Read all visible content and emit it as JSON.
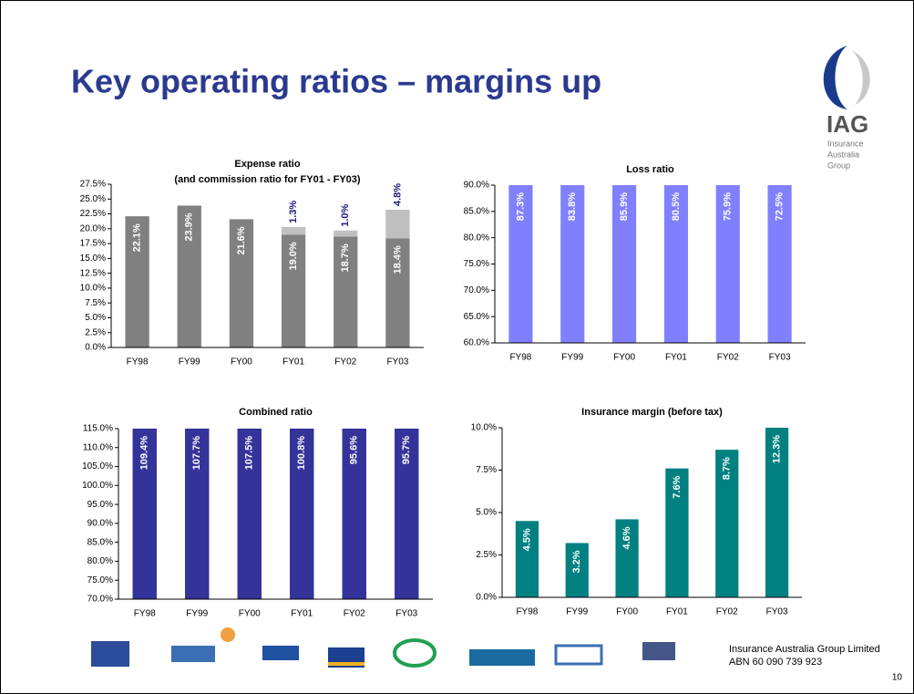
{
  "title": "Key operating ratios – margins up",
  "logo": {
    "name": "IAG",
    "lines": [
      "Insurance",
      "Australia",
      "Group"
    ]
  },
  "footer": {
    "company": "Insurance Australia Group Limited",
    "abn": "ABN 60 090 739 923",
    "page": "10"
  },
  "chart_data": [
    {
      "type": "bar",
      "stacked": true,
      "title": "Expense ratio",
      "subtitle": "(and commission ratio for FY01 - FY03)",
      "categories": [
        "FY98",
        "FY99",
        "FY00",
        "FY01",
        "FY02",
        "FY03"
      ],
      "series": [
        {
          "color": "#808080",
          "values": [
            22.1,
            23.9,
            21.6,
            19.0,
            18.7,
            18.4
          ],
          "value_labels": [
            "22.1%",
            "23.9%",
            "21.6%",
            "19.0%",
            "18.7%",
            "18.4%"
          ]
        },
        {
          "color": "#c0c0c0",
          "values": [
            null,
            null,
            null,
            1.3,
            1.0,
            4.8
          ],
          "value_labels": [
            null,
            null,
            null,
            "1.3%",
            "1.0%",
            "4.8%"
          ]
        }
      ],
      "ylim": [
        0,
        27.5
      ],
      "yticks": [
        {
          "value": 0,
          "label": "0.0%"
        },
        {
          "value": 2.5,
          "label": "2.5%"
        },
        {
          "value": 5,
          "label": "5.0%"
        },
        {
          "value": 7.5,
          "label": "7.5%"
        },
        {
          "value": 10,
          "label": "10.0%"
        },
        {
          "value": 12.5,
          "label": "12.5%"
        },
        {
          "value": 15,
          "label": "15.0%"
        },
        {
          "value": 17.5,
          "label": "17.5%"
        },
        {
          "value": 20,
          "label": "20.0%"
        },
        {
          "value": 22.5,
          "label": "22.5%"
        },
        {
          "value": 25,
          "label": "25.0%"
        },
        {
          "value": 27.5,
          "label": "27.5%"
        }
      ],
      "grid": false
    },
    {
      "type": "bar",
      "title": "Loss ratio",
      "categories": [
        "FY98",
        "FY99",
        "FY00",
        "FY01",
        "FY02",
        "FY03"
      ],
      "series": [
        {
          "color": "#8080ff",
          "values": [
            87.3,
            83.8,
            85.9,
            80.5,
            75.9,
            72.5
          ],
          "value_labels": [
            "87.3%",
            "83.8%",
            "85.9%",
            "80.5%",
            "75.9%",
            "72.5%"
          ]
        }
      ],
      "ylim": [
        60,
        90
      ],
      "yticks": [
        {
          "value": 60,
          "label": "60.0%"
        },
        {
          "value": 65,
          "label": "65.0%"
        },
        {
          "value": 70,
          "label": "70.0%"
        },
        {
          "value": 75,
          "label": "75.0%"
        },
        {
          "value": 80,
          "label": "80.0%"
        },
        {
          "value": 85,
          "label": "85.0%"
        },
        {
          "value": 90,
          "label": "90.0%"
        }
      ],
      "grid": false
    },
    {
      "type": "bar",
      "title": "Combined ratio",
      "categories": [
        "FY98",
        "FY99",
        "FY00",
        "FY01",
        "FY02",
        "FY03"
      ],
      "series": [
        {
          "color": "#333399",
          "values": [
            109.4,
            107.7,
            107.5,
            100.8,
            95.6,
            95.7
          ],
          "value_labels": [
            "109.4%",
            "107.7%",
            "107.5%",
            "100.8%",
            "95.6%",
            "95.7%"
          ]
        }
      ],
      "ylim": [
        70,
        115
      ],
      "yticks": [
        {
          "value": 70,
          "label": "70.0%"
        },
        {
          "value": 75,
          "label": "75.0%"
        },
        {
          "value": 80,
          "label": "80.0%"
        },
        {
          "value": 85,
          "label": "85.0%"
        },
        {
          "value": 90,
          "label": "90.0%"
        },
        {
          "value": 95,
          "label": "95.0%"
        },
        {
          "value": 100,
          "label": "100.0%"
        },
        {
          "value": 105,
          "label": "105.0%"
        },
        {
          "value": 110,
          "label": "110.0%"
        },
        {
          "value": 115,
          "label": "115.0%"
        }
      ],
      "grid": false
    },
    {
      "type": "bar",
      "title": "Insurance margin (before tax)",
      "categories": [
        "FY98",
        "FY99",
        "FY00",
        "FY01",
        "FY02",
        "FY03"
      ],
      "series": [
        {
          "color": "#008080",
          "values": [
            4.5,
            3.2,
            4.6,
            7.6,
            8.7,
            12.3
          ],
          "value_labels": [
            "4.5%",
            "3.2%",
            "4.6%",
            "7.6%",
            "8.7%",
            "12.3%"
          ]
        }
      ],
      "ylim": [
        0,
        10
      ],
      "yticks": [
        {
          "value": 0,
          "label": "0.0%"
        },
        {
          "value": 2.5,
          "label": "2.5%"
        },
        {
          "value": 5,
          "label": "5.0%"
        },
        {
          "value": 7.5,
          "label": "7.5%"
        },
        {
          "value": 10,
          "label": "10.0%"
        }
      ],
      "grid": false
    }
  ]
}
